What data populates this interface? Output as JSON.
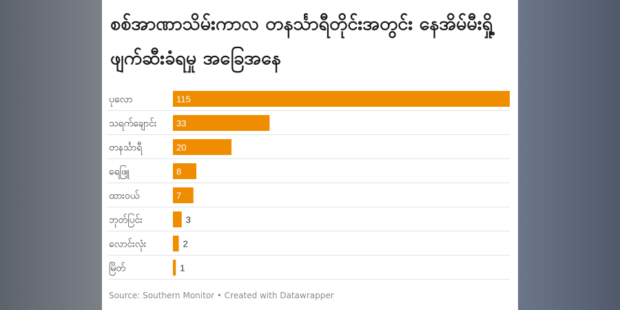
{
  "chart_data": {
    "type": "bar",
    "orientation": "horizontal",
    "title": "စစ်အာဏာသိမ်းကာလ တနင်္သာရီတိုင်းအတွင်း နေအိမ်မီးရှို့ဖျက်ဆီးခံရမှု အခြေအနေ",
    "categories": [
      "ပုလော",
      "သရက်ချောင်း",
      "တနင်္သာရီ",
      "ရေဖြူ",
      "ထားဝယ်",
      "ဘုတ်ပြင်း",
      "လောင်းလုံး",
      "မြိတ်"
    ],
    "values": [
      115,
      33,
      20,
      8,
      7,
      3,
      2,
      1
    ],
    "xlim": [
      0,
      115
    ],
    "bar_color": "#f08c00",
    "grid": false
  },
  "footer": {
    "source": "Source: Southern Monitor • Created with Datawrapper"
  }
}
